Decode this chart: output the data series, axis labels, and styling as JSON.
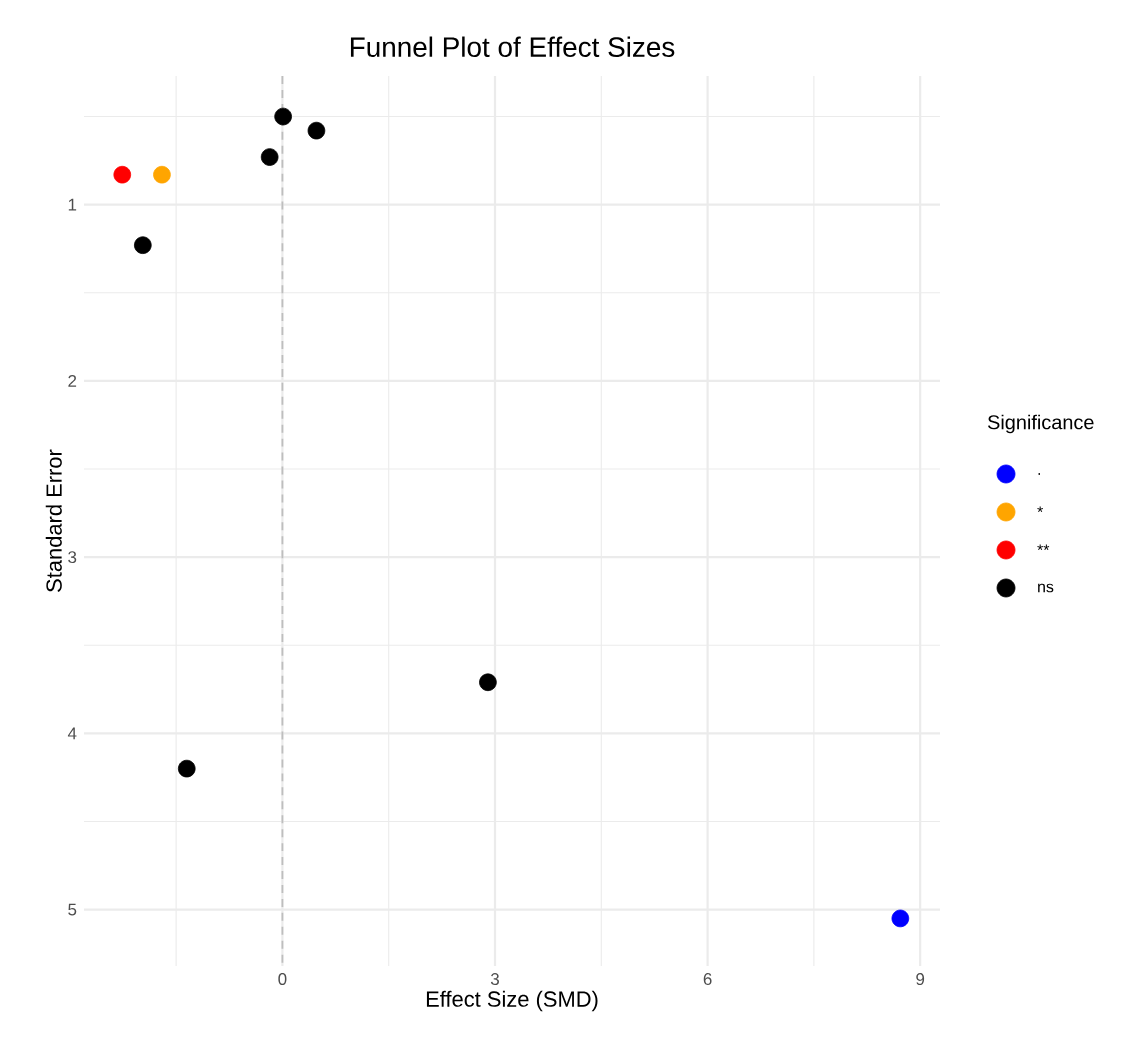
{
  "chart_data": {
    "type": "scatter",
    "title": "Funnel Plot of Effect Sizes",
    "xlabel": "Effect Size (SMD)",
    "ylabel": "Standard Error",
    "legend_title": "Significance",
    "series": [
      {
        "name": ".",
        "color": "#0000ff",
        "x": [
          8.72
        ],
        "values": [
          5.05
        ]
      },
      {
        "name": "*",
        "color": "#ffa500",
        "x": [
          -1.7
        ],
        "values": [
          0.83
        ]
      },
      {
        "name": "**",
        "color": "#ff0000",
        "x": [
          -2.26
        ],
        "values": [
          0.83
        ]
      },
      {
        "name": "ns",
        "color": "#000000",
        "x": [
          -1.97,
          -0.18,
          0.01,
          0.48,
          2.9,
          -1.35
        ],
        "values": [
          1.23,
          0.73,
          0.5,
          0.58,
          3.71,
          4.2
        ]
      }
    ],
    "xlim": [
      -2.8,
      9.28
    ],
    "ylim": [
      5.32,
      0.27
    ],
    "xticks": [
      0,
      3,
      6,
      9
    ],
    "yticks": [
      1,
      2,
      3,
      4,
      5
    ],
    "ref_lines": [
      {
        "axis": "x",
        "value": 0,
        "color": "#bebebe",
        "line_style": "dashed"
      }
    ],
    "grid": true,
    "legend": "right",
    "marker": "circle"
  }
}
